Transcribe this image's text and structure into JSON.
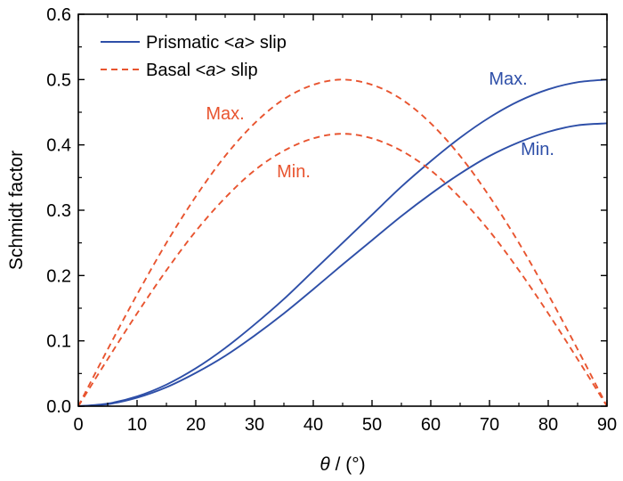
{
  "chart_data": {
    "type": "line",
    "xlabel_italic": "θ",
    "xlabel_rest": " / (°)",
    "ylabel": "Schmidt factor",
    "xlim": [
      0,
      90
    ],
    "ylim": [
      0,
      0.6
    ],
    "x_ticks": [
      "0",
      "10",
      "20",
      "30",
      "40",
      "50",
      "60",
      "70",
      "80",
      "90"
    ],
    "y_ticks": [
      "0.0",
      "0.1",
      "0.2",
      "0.3",
      "0.4",
      "0.5",
      "0.6"
    ],
    "grid": false,
    "legend_position": "top-left",
    "x": [
      0,
      5,
      10,
      15,
      20,
      25,
      30,
      35,
      40,
      45,
      50,
      55,
      60,
      65,
      70,
      75,
      80,
      85,
      90
    ],
    "series": [
      {
        "legend_pre": "Prismatic <",
        "legend_italic": "a",
        "legend_post": "> slip",
        "color": "#2e4fa8",
        "dash": "solid",
        "curves": [
          {
            "label": "Max.",
            "values": [
              0,
              0.004,
              0.015,
              0.033,
              0.058,
              0.089,
              0.125,
              0.164,
              0.207,
              0.25,
              0.293,
              0.336,
              0.375,
              0.411,
              0.442,
              0.467,
              0.485,
              0.496,
              0.5
            ]
          },
          {
            "label": "Min.",
            "values": [
              0,
              0.003,
              0.013,
              0.029,
              0.051,
              0.077,
              0.108,
              0.142,
              0.179,
              0.217,
              0.254,
              0.291,
              0.325,
              0.356,
              0.383,
              0.404,
              0.42,
              0.43,
              0.433
            ]
          }
        ]
      },
      {
        "legend_pre": "Basal <",
        "legend_italic": "a",
        "legend_post": "> slip",
        "color": "#e8542f",
        "dash": "dashed",
        "curves": [
          {
            "label": "Max.",
            "values": [
              0,
              0.087,
              0.171,
              0.25,
              0.321,
              0.383,
              0.433,
              0.47,
              0.492,
              0.5,
              0.492,
              0.47,
              0.433,
              0.383,
              0.321,
              0.25,
              0.171,
              0.087,
              0
            ]
          },
          {
            "label": "Min.",
            "values": [
              0,
              0.072,
              0.142,
              0.208,
              0.268,
              0.319,
              0.361,
              0.391,
              0.41,
              0.417,
              0.41,
              0.391,
              0.361,
              0.319,
              0.268,
              0.208,
              0.142,
              0.072,
              0
            ]
          }
        ]
      }
    ]
  }
}
